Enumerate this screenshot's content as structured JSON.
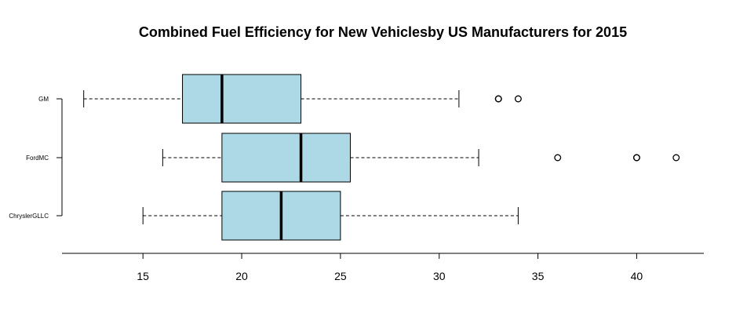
{
  "chart_data": {
    "type": "boxplot",
    "orientation": "horizontal",
    "title": "Combined Fuel Efficiency for New Vehiclesby US Manufacturers for 2015",
    "xlabel": "",
    "ylabel": "",
    "xlim": [
      10.9,
      43.4
    ],
    "x_ticks": [
      15,
      20,
      25,
      30,
      35,
      40
    ],
    "box_color": "#add8e6",
    "categories": [
      "GM",
      "FordMC",
      "ChryslerGLLC"
    ],
    "boxes": [
      {
        "category": "GM",
        "whisker_low": 12,
        "q1": 17,
        "median": 19,
        "q3": 23,
        "whisker_high": 31,
        "outliers": [
          33,
          33,
          34
        ]
      },
      {
        "category": "FordMC",
        "whisker_low": 16,
        "q1": 19,
        "median": 23,
        "q3": 25.5,
        "whisker_high": 32,
        "outliers": [
          36,
          40,
          40,
          42
        ]
      },
      {
        "category": "ChryslerGLLC",
        "whisker_low": 15,
        "q1": 19,
        "median": 22,
        "q3": 25,
        "whisker_high": 34,
        "outliers": []
      }
    ]
  }
}
